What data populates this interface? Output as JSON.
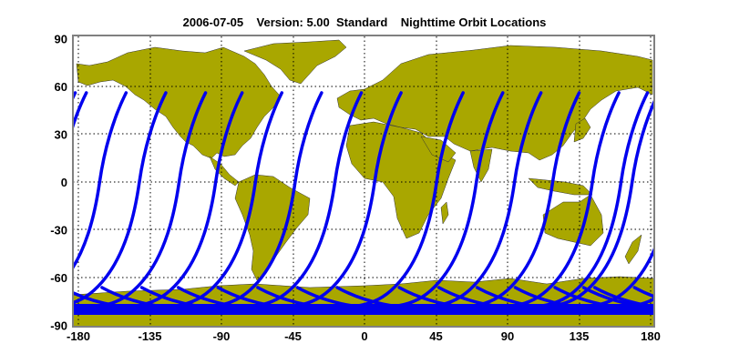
{
  "title": "2006-07-05    Version: 5.00  Standard    Nighttime Orbit Locations",
  "map": {
    "land_color": "#a9a700",
    "track_color": "#0000ee",
    "frame_color": "#808080",
    "grid_style": "dotted"
  },
  "axes": {
    "y_ticks": [
      "90",
      "60",
      "30",
      "0",
      "-30",
      "-60",
      "-90"
    ],
    "x_ticks": [
      "-180",
      "-135",
      "-90",
      "-45",
      "0",
      "45",
      "90",
      "135",
      "180"
    ]
  },
  "orbit_tracks": {
    "top_lat": 57,
    "top_longitudes": [
      -175,
      -150,
      -125,
      -100,
      -77,
      -52,
      -27,
      -2,
      23,
      62,
      87,
      111,
      135,
      160,
      178
    ]
  }
}
